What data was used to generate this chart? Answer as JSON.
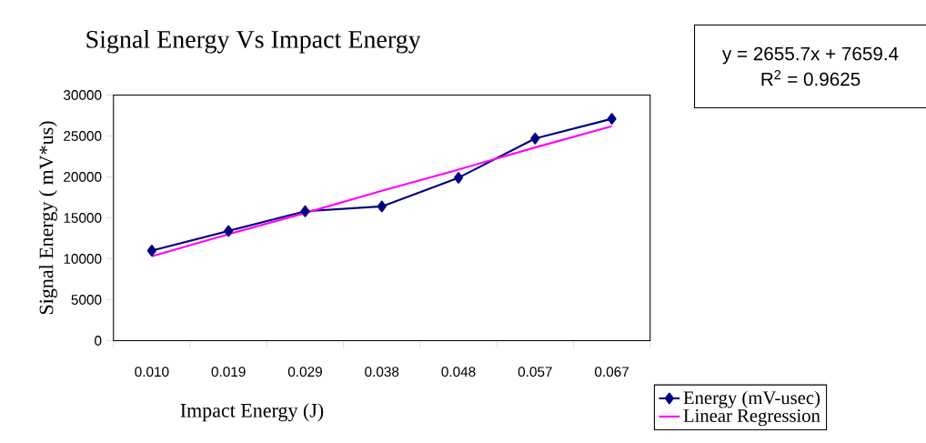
{
  "chart_data": {
    "type": "line",
    "title": "Signal Energy Vs Impact Energy",
    "xlabel": "Impact Energy (J)",
    "ylabel": "Signal Energy ( mV*us)",
    "categories": [
      "0.010",
      "0.019",
      "0.029",
      "0.038",
      "0.048",
      "0.057",
      "0.067"
    ],
    "series": [
      {
        "name": "Energy (mV-usec)",
        "color": "#000080",
        "marker": "diamond",
        "values": [
          11000,
          13400,
          15800,
          16400,
          19900,
          24700,
          27100
        ]
      },
      {
        "name": "Linear Regression",
        "color": "#ff00ff",
        "marker": "none",
        "values": [
          10300,
          13000,
          15600,
          18300,
          20900,
          23600,
          26200
        ]
      }
    ],
    "ylim": [
      0,
      30000
    ],
    "yticks": [
      0,
      5000,
      10000,
      15000,
      20000,
      25000,
      30000
    ],
    "grid": false,
    "legend": "bottom right",
    "annotations": [
      "y = 2655.7x + 7659.4",
      "R$^{2}$ = 0.9625"
    ]
  }
}
